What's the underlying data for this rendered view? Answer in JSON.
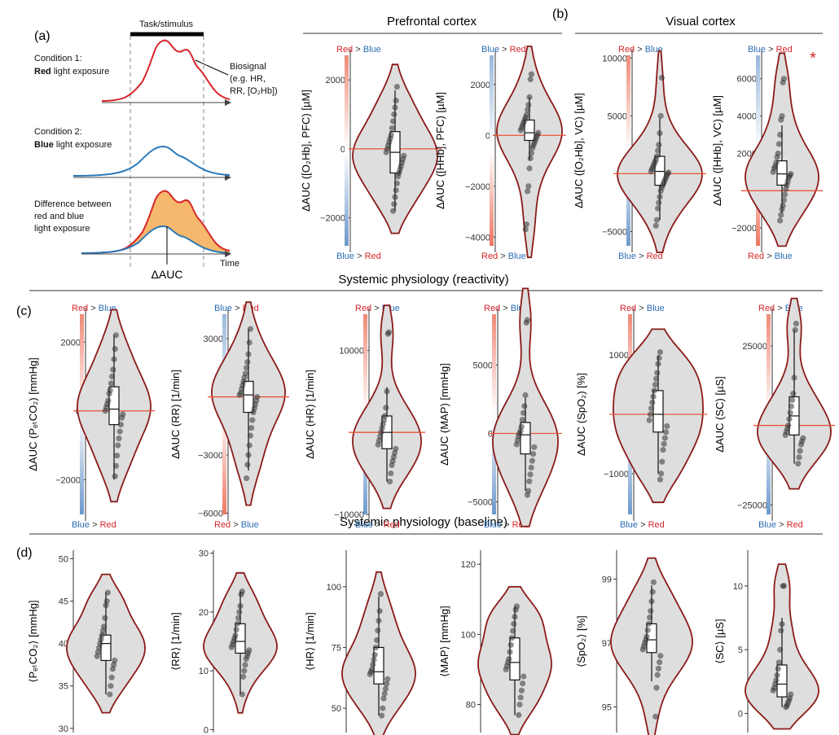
{
  "panel_letters": {
    "a": "(a)",
    "b": "(b)",
    "c": "(c)",
    "d": "(d)"
  },
  "group_titles": {
    "prefrontal": "Prefrontal cortex",
    "visual": "Visual cortex",
    "reactivity": "Systemic physiology (reactivity)",
    "baseline": "Systemic physiology (baseline)"
  },
  "schematic": {
    "task_label": "Task/stimulus",
    "cond1_line1": "Condition 1:",
    "cond1_bold": "Red",
    "cond1_rest": " light exposure",
    "biosignal_1": "Biosignal",
    "biosignal_2": "(e.g. HR,",
    "biosignal_3": "RR, [O₂Hb])",
    "cond2_line1": "Condition 2:",
    "cond2_bold": "Blue",
    "cond2_rest": " light exposure",
    "diff_1": "Difference between",
    "diff_2": "red and blue",
    "diff_3": "light exposure",
    "time_label": "Time",
    "dauc_label": "ΔAUC"
  },
  "colorbar_text": {
    "red": "Red",
    "blue": "Blue",
    "gt": " > "
  },
  "colors": {
    "violin_fill": "#dedede",
    "violin_stroke": "#8b1a1a",
    "zero_line": "#e8553a",
    "red": "#d6262b",
    "blue": "#2b6cb3",
    "auc_fill": "#f6b86c",
    "signal_red": "#d6262b",
    "signal_blue": "#2b79b8"
  },
  "star": "*",
  "chart_data": [
    {
      "id": "a1",
      "type": "violin",
      "ylabel": "ΔAUC ([O₂Hb], PFC) [µM]",
      "ylim": [
        -3000,
        2900
      ],
      "ticks": [
        -2000,
        0,
        2000
      ],
      "tick_labels": [
        "−2000",
        "0",
        "2000"
      ],
      "zero_line": true,
      "colorbar": {
        "top": "Red > Blue",
        "bottom": "Blue > Red"
      },
      "box": {
        "q1": -700,
        "median": -100,
        "q3": 500,
        "wmin": -1800,
        "wmax": 1700
      },
      "points": [
        1800,
        1400,
        1200,
        1000,
        800,
        600,
        400,
        300,
        200,
        100,
        0,
        -100,
        -200,
        -300,
        -400,
        -500,
        -600,
        -700,
        -800,
        -1000,
        -1200,
        -1400,
        -1600,
        -1800
      ]
    },
    {
      "id": "a2",
      "type": "violin",
      "ylabel": "ΔAUC ([HHb], PFC) [µM]",
      "ylim": [
        -4600,
        3400
      ],
      "ticks": [
        -4000,
        -2000,
        0,
        2000
      ],
      "tick_labels": [
        "−4000",
        "−2000",
        "0",
        "2000"
      ],
      "zero_line": true,
      "colorbar": {
        "top": "Blue > Red",
        "bottom": "Red > Blue"
      },
      "box": {
        "q1": -200,
        "median": 100,
        "q3": 600,
        "wmin": -1000,
        "wmax": 1500
      },
      "points": [
        2400,
        2200,
        1500,
        1200,
        1000,
        800,
        700,
        600,
        500,
        400,
        300,
        200,
        100,
        0,
        -100,
        -200,
        -300,
        -400,
        -500,
        -700,
        -900,
        -1300,
        -2000,
        -2200,
        -3500,
        -3700
      ]
    },
    {
      "id": "b1",
      "type": "violin",
      "ylabel": "ΔAUC ([O₂Hb], VC) [µM]",
      "ylim": [
        -6800,
        10800
      ],
      "ticks": [
        -5000,
        0,
        5000,
        10000
      ],
      "tick_labels": [
        "−5000",
        "0",
        "5000",
        "10000"
      ],
      "zero_line": true,
      "colorbar": {
        "top": "Red > Blue",
        "bottom": "Blue > Red"
      },
      "box": {
        "q1": -1000,
        "median": 200,
        "q3": 1500,
        "wmin": -4000,
        "wmax": 4800
      },
      "points": [
        8300,
        5000,
        3500,
        2500,
        2000,
        1500,
        1200,
        1000,
        800,
        600,
        400,
        200,
        100,
        0,
        -200,
        -400,
        -600,
        -800,
        -1000,
        -1200,
        -1500,
        -2000,
        -2500,
        -3000,
        -4000,
        -4500
      ]
    },
    {
      "id": "b2",
      "type": "violin",
      "ylabel": "ΔAUC ([HHb], VC) [µM]",
      "ylim": [
        -3300,
        7600
      ],
      "ticks": [
        -2000,
        0,
        2000,
        4000,
        6000
      ],
      "tick_labels": [
        "−2000",
        "0",
        "2000",
        "4000",
        "6000"
      ],
      "zero_line": true,
      "colorbar": {
        "top": "Blue > Red",
        "bottom": "Red > Blue"
      },
      "box": {
        "q1": 300,
        "median": 900,
        "q3": 1600,
        "wmin": -1200,
        "wmax": 3500
      },
      "points": [
        6000,
        5800,
        4000,
        3800,
        3000,
        2500,
        2000,
        1800,
        1500,
        1300,
        1200,
        1000,
        900,
        800,
        700,
        500,
        300,
        100,
        -200,
        -500,
        -800,
        -1000,
        -1300,
        -1600
      ]
    },
    {
      "id": "c1",
      "type": "violin",
      "ylabel": "ΔAUC (PₑₜCO₂) [mmHg]",
      "ylim": [
        -3200,
        3000
      ],
      "ticks": [
        -2000,
        0,
        2000
      ],
      "tick_labels": [
        "−2000",
        "0",
        "2000"
      ],
      "zero_line": true,
      "colorbar": {
        "top": "Red > Blue",
        "bottom": "Blue > Red"
      },
      "box": {
        "q1": -400,
        "median": 50,
        "q3": 700,
        "wmin": -2000,
        "wmax": 2200
      },
      "points": [
        2200,
        1800,
        1500,
        1200,
        1000,
        800,
        600,
        500,
        300,
        200,
        100,
        0,
        -100,
        -200,
        -400,
        -600,
        -800,
        -1000,
        -1300,
        -1600,
        -1900
      ]
    },
    {
      "id": "c2",
      "type": "violin",
      "ylabel": "ΔAUC (RR) [1/min]",
      "ylim": [
        -6400,
        4600
      ],
      "ticks": [
        -6000,
        -3000,
        0,
        3000
      ],
      "tick_labels": [
        "−6000",
        "−3000",
        "0",
        "3000"
      ],
      "zero_line": true,
      "colorbar": {
        "top": "Blue > Red",
        "bottom": "Red > Blue"
      },
      "box": {
        "q1": -800,
        "median": 100,
        "q3": 800,
        "wmin": -3800,
        "wmax": 3500
      },
      "points": [
        3500,
        2800,
        2200,
        1800,
        1500,
        1200,
        1000,
        800,
        600,
        400,
        200,
        100,
        0,
        -200,
        -400,
        -600,
        -800,
        -1200,
        -1600,
        -2000,
        -2500,
        -3000,
        -3500,
        -4200
      ]
    },
    {
      "id": "c3",
      "type": "violin",
      "ylabel": "ΔAUC (HR) [1/min]",
      "ylim": [
        -10800,
        15200
      ],
      "ticks": [
        -10000,
        0,
        10000
      ],
      "tick_labels": [
        "−10000",
        "0",
        "10000"
      ],
      "zero_line": true,
      "colorbar": {
        "top": "Red > Blue",
        "bottom": "Blue > Red"
      },
      "box": {
        "q1": -2000,
        "median": 0,
        "q3": 2000,
        "wmin": -6000,
        "wmax": 5500
      },
      "points": [
        12200,
        12000,
        5000,
        3000,
        2000,
        1500,
        1000,
        500,
        0,
        -500,
        -1000,
        -1500,
        -2000,
        -2500,
        -3000,
        -3500,
        -4000,
        -5000,
        -6000
      ]
    },
    {
      "id": "c4",
      "type": "violin",
      "ylabel": "ΔAUC (MAP) [mmHg]",
      "ylim": [
        -6400,
        9200
      ],
      "ticks": [
        -5000,
        0,
        5000
      ],
      "tick_labels": [
        "−5000",
        "0",
        "5000"
      ],
      "zero_line": true,
      "colorbar": {
        "top": "Red > Blue",
        "bottom": "Blue > Red"
      },
      "box": {
        "q1": -1500,
        "median": -100,
        "q3": 800,
        "wmin": -4200,
        "wmax": 2600
      },
      "points": [
        8300,
        8100,
        2800,
        2000,
        1500,
        1000,
        500,
        200,
        0,
        -200,
        -500,
        -800,
        -1000,
        -1500,
        -2000,
        -2500,
        -3000,
        -3500,
        -4200,
        -4500
      ]
    },
    {
      "id": "c5",
      "type": "violin",
      "ylabel": "ΔAUC (SpO₂) [%]",
      "ylim": [
        -1800,
        1800
      ],
      "ticks": [
        -1000,
        0,
        1000
      ],
      "tick_labels": [
        "−1000",
        "0",
        "1000"
      ],
      "zero_line": true,
      "colorbar": {
        "top": "Red > Blue",
        "bottom": "Blue > Red"
      },
      "box": {
        "q1": -300,
        "median": 0,
        "q3": 400,
        "wmin": -1000,
        "wmax": 1000
      },
      "points": [
        1050,
        950,
        850,
        700,
        600,
        500,
        400,
        300,
        200,
        100,
        0,
        -100,
        -200,
        -300,
        -400,
        -500,
        -600,
        -800,
        -1000,
        -1100
      ]
    },
    {
      "id": "c6",
      "type": "violin",
      "ylabel": "ΔAUC (SC) [µS]",
      "ylim": [
        -30000,
        37000
      ],
      "ticks": [
        -25000,
        0,
        25000
      ],
      "tick_labels": [
        "−25000",
        "0",
        "25000"
      ],
      "zero_line": true,
      "colorbar": {
        "top": "Red > Blue",
        "bottom": "Blue > Red"
      },
      "box": {
        "q1": -3000,
        "median": 3000,
        "q3": 9000,
        "wmin": -12000,
        "wmax": 30000
      },
      "points": [
        32000,
        30000,
        15000,
        10000,
        8000,
        6000,
        4000,
        2000,
        0,
        -1000,
        -2000,
        -3000,
        -4000,
        -5000,
        -6000,
        -8000,
        -10000,
        -12000
      ]
    },
    {
      "id": "d1",
      "type": "violin",
      "ylabel": "⟨PₑₜCO₂⟩ [mmHg]",
      "ylim": [
        29.5,
        51
      ],
      "ticks": [
        30,
        35,
        40,
        45,
        50
      ],
      "tick_labels": [
        "30",
        "35",
        "40",
        "45",
        "50"
      ],
      "zero_line": false,
      "colorbar": null,
      "box": {
        "q1": 38,
        "median": 40,
        "q3": 41,
        "wmin": 34,
        "wmax": 46
      },
      "points": [
        46,
        45,
        44.5,
        43,
        42,
        41.5,
        41,
        40.5,
        40,
        39.5,
        39,
        38.5,
        38,
        37.5,
        37,
        36,
        35,
        34
      ]
    },
    {
      "id": "d2",
      "type": "violin",
      "ylabel": "⟨RR⟩ [1/min]",
      "ylim": [
        -0.5,
        30.5
      ],
      "ticks": [
        0,
        10,
        20,
        30
      ],
      "tick_labels": [
        "0",
        "10",
        "20",
        "30"
      ],
      "zero_line": false,
      "colorbar": null,
      "box": {
        "q1": 13,
        "median": 15,
        "q3": 18,
        "wmin": 6,
        "wmax": 23.5
      },
      "points": [
        23.5,
        23,
        21,
        20,
        19,
        18,
        17,
        16,
        15.5,
        15,
        14.5,
        14,
        13.5,
        13,
        12.5,
        12,
        11,
        10,
        9,
        6
      ]
    },
    {
      "id": "d3",
      "type": "violin",
      "ylabel": "⟨HR⟩ [1/min]",
      "ylim": [
        40,
        115
      ],
      "ticks": [
        50,
        75,
        100
      ],
      "tick_labels": [
        "50",
        "75",
        "100"
      ],
      "zero_line": false,
      "colorbar": null,
      "box": {
        "q1": 60,
        "median": 65,
        "q3": 75,
        "wmin": 47,
        "wmax": 96
      },
      "points": [
        97,
        90,
        86,
        82,
        78,
        75,
        72,
        70,
        68,
        66,
        65,
        64,
        62,
        60,
        58,
        56,
        54,
        50,
        47
      ]
    },
    {
      "id": "d4",
      "type": "violin",
      "ylabel": "⟨MAP⟩ [mmHg]",
      "ylim": [
        72,
        124
      ],
      "ticks": [
        80,
        100,
        120
      ],
      "tick_labels": [
        "80",
        "100",
        "120"
      ],
      "zero_line": false,
      "colorbar": null,
      "box": {
        "q1": 87,
        "median": 92,
        "q3": 99,
        "wmin": 77,
        "wmax": 108
      },
      "points": [
        108,
        107,
        105,
        103,
        101,
        99,
        97,
        95,
        93,
        92,
        91,
        90,
        88,
        86,
        84,
        82,
        80,
        77
      ]
    },
    {
      "id": "d5",
      "type": "violin",
      "ylabel": "⟨SpO₂⟩ [%]",
      "ylim": [
        94.2,
        99.9
      ],
      "ticks": [
        95,
        97,
        99
      ],
      "tick_labels": [
        "95",
        "97",
        "99"
      ],
      "zero_line": false,
      "colorbar": null,
      "box": {
        "q1": 96.7,
        "median": 97.1,
        "q3": 97.6,
        "wmin": 95.8,
        "wmax": 98.8
      },
      "points": [
        98.9,
        98.6,
        98.3,
        98,
        97.8,
        97.6,
        97.4,
        97.2,
        97.1,
        97,
        96.9,
        96.8,
        96.6,
        96.4,
        96.2,
        96,
        95.6,
        94.7
      ]
    },
    {
      "id": "d6",
      "type": "violin",
      "ylabel": "⟨SC⟩ [µS]",
      "ylim": [
        -1.5,
        12.8
      ],
      "ticks": [
        0,
        5,
        10
      ],
      "tick_labels": [
        "0",
        "5",
        "10"
      ],
      "zero_line": false,
      "colorbar": null,
      "box": {
        "q1": 1.3,
        "median": 2.3,
        "q3": 3.8,
        "wmin": 0.5,
        "wmax": 7.5
      },
      "points": [
        10,
        10,
        7,
        6.5,
        5,
        4,
        3.5,
        3,
        2.6,
        2.3,
        2,
        1.8,
        1.5,
        1.2,
        1,
        0.8,
        0.6,
        0.5
      ]
    }
  ]
}
